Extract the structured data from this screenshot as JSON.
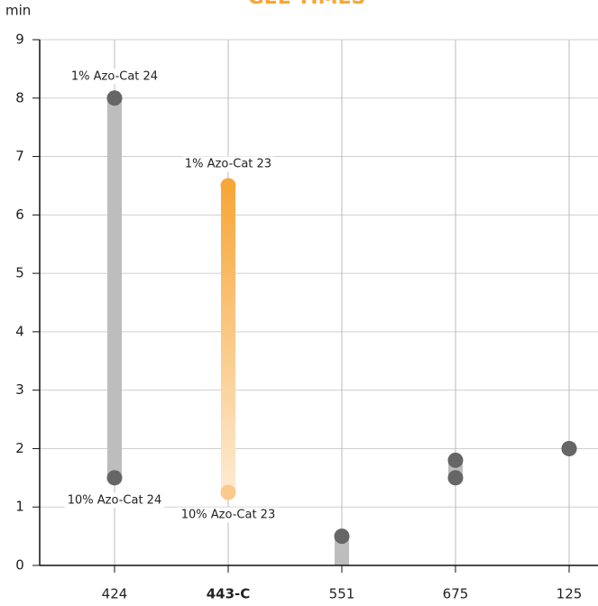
{
  "chart_data": {
    "type": "range",
    "title": "GEL TIMES",
    "y_label": "min",
    "categories": [
      "424",
      "443-C",
      "551",
      "675",
      "125"
    ],
    "highlight": 1,
    "low": [
      1.5,
      1.25,
      -0.3,
      1.5,
      2
    ],
    "high": [
      8,
      6.5,
      0.5,
      1.8,
      2
    ],
    "high_labels": [
      "1% Azo-Cat 24",
      "1% Azo-Cat 23",
      null,
      null,
      null
    ],
    "low_labels": [
      "10% Azo-Cat 24",
      "10% Azo-Cat 23",
      null,
      null,
      null
    ],
    "ylim": [
      0,
      9
    ],
    "yticks": [
      0,
      1,
      2,
      3,
      4,
      5,
      6,
      7,
      8,
      9
    ],
    "grid": true,
    "colors": {
      "bar": "#bdbdbd",
      "dot": "#666666",
      "highlight_top": "#f7a738",
      "highlight_bottom": "#fdebd3",
      "highlight_low_dot": "#fcc98c",
      "title": "#f7a738"
    }
  }
}
